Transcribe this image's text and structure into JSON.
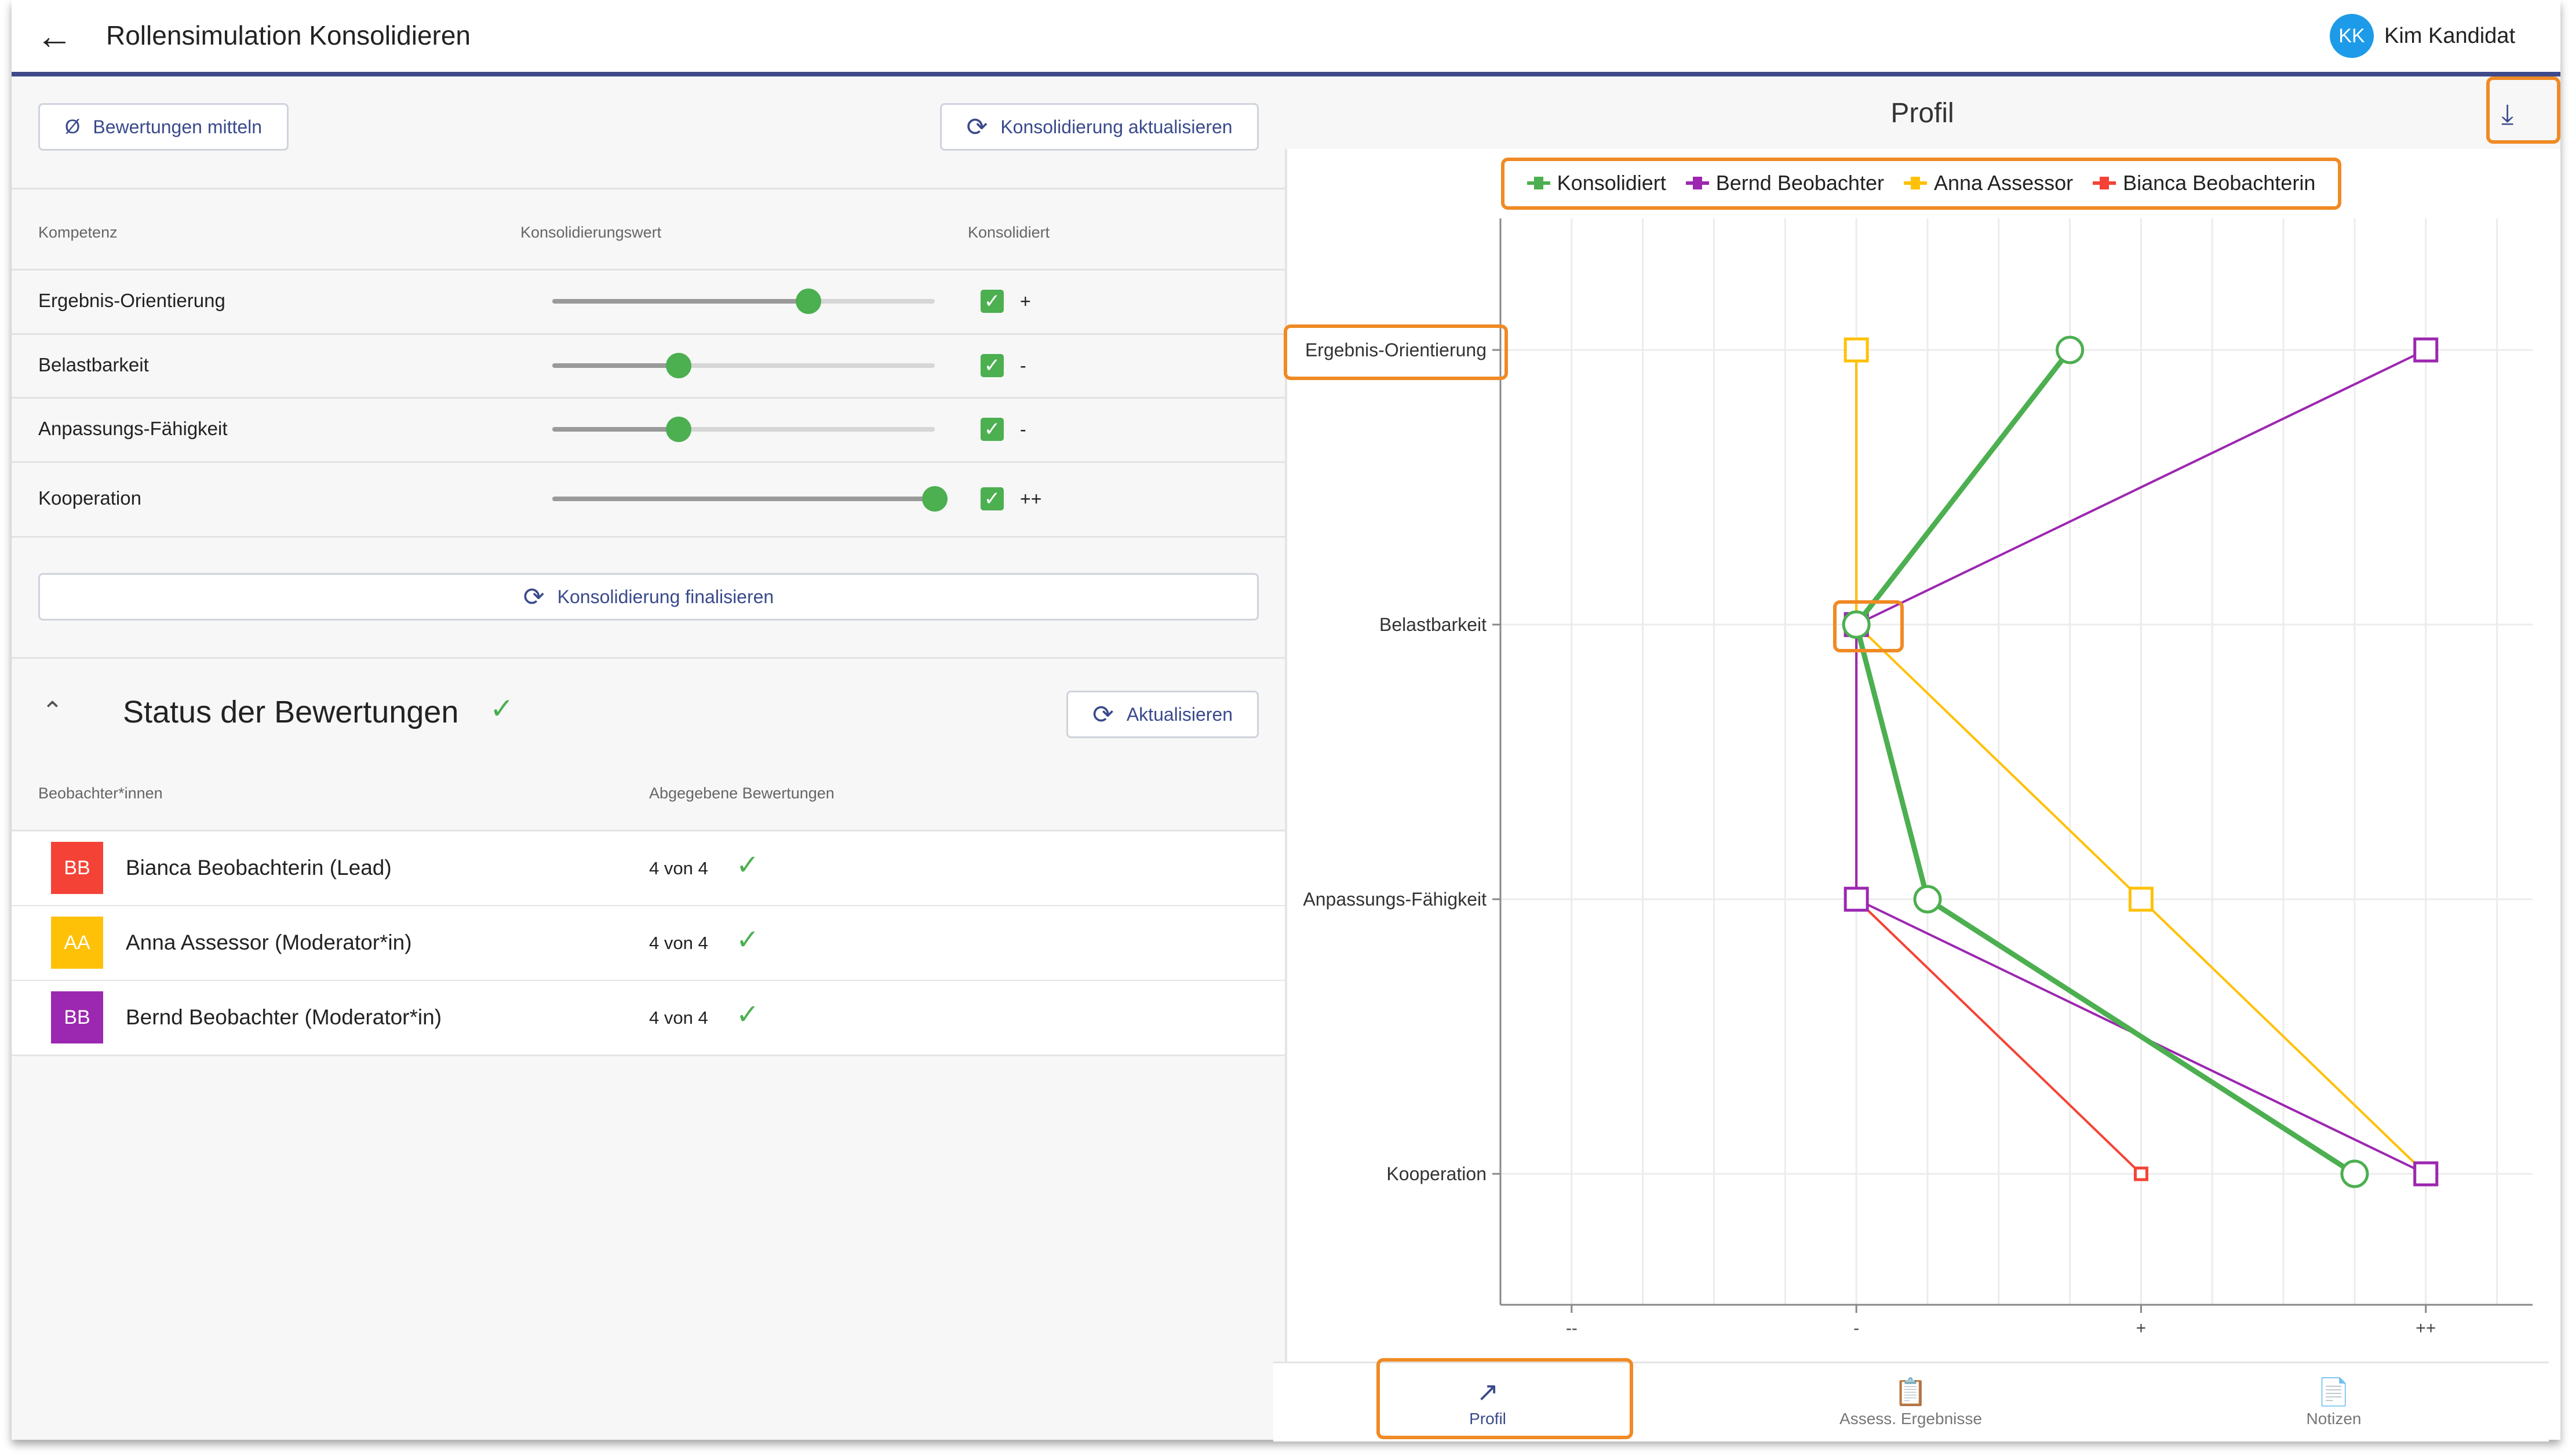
{
  "appbar": {
    "title": "Rollensimulation Konsolidieren",
    "user_initials": "KK",
    "user_name": "Kim Kandidat",
    "back_icon": "arrow-left-icon"
  },
  "toolbar": {
    "average_button": "Bewertungen mitteln",
    "average_symbol": "Ø",
    "update_button": "Konsolidierung aktualisieren"
  },
  "table": {
    "headers": {
      "competence": "Kompetenz",
      "value": "Konsolidierungswert",
      "consolidated": "Konsolidiert"
    },
    "rows": [
      {
        "label": "Ergebnis-Orientierung",
        "value": 0.67,
        "checked": true,
        "symbol": "+"
      },
      {
        "label": "Belastbarkeit",
        "value": 0.33,
        "checked": true,
        "symbol": "-"
      },
      {
        "label": "Anpassungs-Fähigkeit",
        "value": 0.33,
        "checked": true,
        "symbol": "-"
      },
      {
        "label": "Kooperation",
        "value": 1.0,
        "checked": true,
        "symbol": "++"
      }
    ]
  },
  "finalize_button": "Konsolidierung finalisieren",
  "status": {
    "title": "Status der Bewertungen",
    "refresh_button": "Aktualisieren",
    "headers": {
      "observer": "Beobachter*innen",
      "submitted": "Abgegebene Bewertungen"
    },
    "observers": [
      {
        "initials": "BB",
        "name": "Bianca Beobachterin (Lead)",
        "count": "4 von 4",
        "color": "#f44336"
      },
      {
        "initials": "AA",
        "name": "Anna Assessor (Moderator*in)",
        "count": "4 von 4",
        "color": "#ffc107"
      },
      {
        "initials": "BB",
        "name": "Bernd Beobachter (Moderator*in)",
        "count": "4 von 4",
        "color": "#9c27b0"
      }
    ]
  },
  "profile": {
    "title": "Profil",
    "download_icon": "download-icon"
  },
  "chart_data": {
    "type": "line",
    "orientation": "horizontal-profile",
    "categories": [
      "Ergebnis-Orientierung",
      "Belastbarkeit",
      "Anpassungs-Fähigkeit",
      "Kooperation"
    ],
    "x_ticks": [
      "--",
      "-",
      "+",
      "++"
    ],
    "x_tick_values": [
      0,
      4,
      8,
      12
    ],
    "xlim": [
      -1,
      13.5
    ],
    "grid": true,
    "legend_position": "top",
    "series": [
      {
        "name": "Konsolidiert",
        "color": "#4caf50",
        "marker": "circle",
        "values": [
          7,
          4,
          5,
          11
        ]
      },
      {
        "name": "Bernd Beobachter",
        "color": "#9c27b0",
        "marker": "square",
        "values": [
          12,
          4,
          4,
          12
        ]
      },
      {
        "name": "Anna Assessor",
        "color": "#ffc107",
        "marker": "square",
        "values": [
          4,
          4,
          8,
          12
        ]
      },
      {
        "name": "Bianca Beobachterin",
        "color": "#f44336",
        "marker": "square-small",
        "values": [
          4,
          4,
          4,
          8
        ]
      }
    ]
  },
  "bottom_nav": [
    {
      "label": "Profil",
      "icon": "chart-line-icon",
      "active": true
    },
    {
      "label": "Assess. Ergebnisse",
      "icon": "clipboard-icon",
      "active": false
    },
    {
      "label": "Notizen",
      "icon": "document-icon",
      "active": false
    }
  ]
}
